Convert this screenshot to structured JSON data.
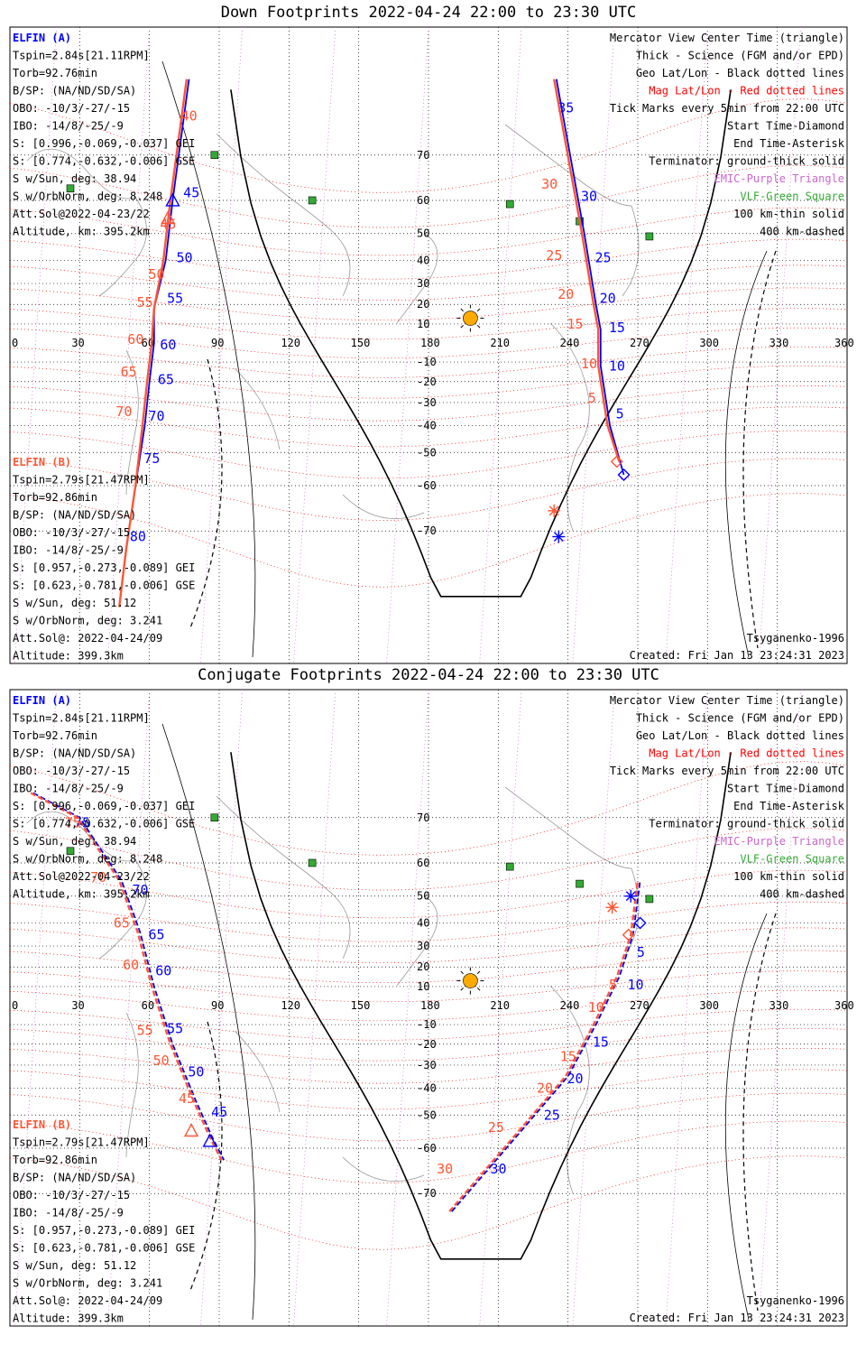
{
  "colors": {
    "probeA": "#0000ff",
    "probeB": "#ff5533",
    "mag": "#ff0000",
    "geo": "#000000",
    "epd": "#cc66cc",
    "vlf": "#33aa33",
    "sun": "#ffaa00",
    "coast": "#9a9a9a"
  },
  "panels": [
    {
      "title": "Down Footprints 2022-04-24 22:00 to 23:30 UTC",
      "legendA": [
        "ELFIN (A)",
        "Tspin=2.84s[21.11RPM]",
        "Torb=92.76min",
        "B/SP: (NA/ND/SD/SA)",
        "OBO: -10/3/-27/-15",
        "IBO: -14/8/-25/-9",
        "S: [0.996,-0.069,-0.037] GEI",
        "S: [0.774,-0.632,-0.006] GSE",
        "S w/Sun, deg: 38.94",
        "S w/OrbNorm, deg: 8.248",
        "Att.Sol@2022-04-23/22",
        "Altitude, km: 395.2km"
      ],
      "legendB": [
        "ELFIN (B)",
        "Tspin=2.79s[21.47RPM]",
        "Torb=92.86min",
        "B/SP: (NA/ND/SD/SA)",
        "OBO: -10/3/-27/-15",
        "IBO: -14/8/-25/-9",
        "S: [0.957,-0.273,-0.089] GEI",
        "S: [0.623,-0.781,-0.006] GSE",
        "S w/Sun, deg: 51.12",
        "S w/OrbNorm, deg: 3.241",
        "Att.Sol@: 2022-04-24/09",
        "Altitude: 399.3km"
      ],
      "rightLegend": [
        "Mercator View Center Time (triangle)",
        "Thick - Science (FGM and/or EPD)",
        "Geo Lat/Lon - Black dotted lines",
        "Mag Lat/Lon - Red dotted lines",
        "Tick Marks every 5min from 22:00 UTC",
        "Start Time-Diamond",
        "End Time-Asterisk",
        "Terminator: ground-thick solid",
        "EMIC-Purple Triangle",
        "VLF-Green Square",
        "100 km-thin solid",
        "400 km-dashed"
      ],
      "model": "Tsyganenko-1996",
      "created": "Created: Fri Jan 13 23:24:31 2023"
    },
    {
      "title": "Conjugate Footprints 2022-04-24 22:00 to 23:30 UTC",
      "legendA": [
        "ELFIN (A)",
        "Tspin=2.84s[21.11RPM]",
        "Torb=92.76min",
        "B/SP: (NA/ND/SD/SA)",
        "OBO: -10/3/-27/-15",
        "IBO: -14/8/-25/-9",
        "S: [0.996,-0.069,-0.037] GEI",
        "S: [0.774,-0.632,-0.006] GSE",
        "S w/Sun, deg: 38.94",
        "S w/OrbNorm, deg: 8.248",
        "Att.Sol@2022-04-23/22",
        "Altitude, km: 395.2km"
      ],
      "legendB": [
        "ELFIN (B)",
        "Tspin=2.79s[21.47RPM]",
        "Torb=92.86min",
        "B/SP: (NA/ND/SD/SA)",
        "OBO: -10/3/-27/-15",
        "IBO: -14/8/-25/-9",
        "S: [0.957,-0.273,-0.089] GEI",
        "S: [0.623,-0.781,-0.006] GSE",
        "S w/Sun, deg: 51.12",
        "S w/OrbNorm, deg: 3.241",
        "Att.Sol@: 2022-04-24/09",
        "Altitude: 399.3km"
      ],
      "rightLegend": [
        "Mercator View Center Time (triangle)",
        "Thick - Science (FGM and/or EPD)",
        "Geo Lat/Lon - Black dotted lines",
        "Mag Lat/Lon - Red dotted lines",
        "Tick Marks every 5min from 22:00 UTC",
        "Start Time-Diamond",
        "End Time-Asterisk",
        "Terminator: ground-thick solid",
        "EMIC-Purple Triangle",
        "VLF-Green Square",
        "100 km-thin solid",
        "400 km-dashed"
      ],
      "model": "Tsyganenko-1996",
      "created": "Created: Fri Jan 13 23:24:31 2023"
    }
  ],
  "chart_data": [
    {
      "type": "scatter",
      "title": "Down Footprints 2022-04-24 22:00 to 23:30 UTC",
      "xlim": [
        0,
        360
      ],
      "ylim": [
        -80,
        80
      ],
      "lon_ticks": [
        0,
        30,
        60,
        90,
        120,
        150,
        180,
        210,
        240,
        270,
        300,
        330,
        360
      ],
      "lat_ticks": [
        70,
        60,
        50,
        40,
        30,
        20,
        10,
        -10,
        -20,
        -30,
        -40,
        -50,
        -60,
        -70
      ],
      "sun": {
        "lon": 198,
        "lat": 13
      },
      "vlf_stations": [
        [
          26,
          63
        ],
        [
          88,
          70
        ],
        [
          130,
          60
        ],
        [
          215,
          59
        ],
        [
          245,
          54
        ],
        [
          275,
          49
        ]
      ],
      "series": [
        {
          "name": "ELFIN (A)",
          "ticks": [
            {
              "label": "35",
              "lon": 234,
              "lat": 77
            },
            {
              "label": "30",
              "lon": 244,
              "lat": 61
            },
            {
              "label": "25",
              "lon": 250,
              "lat": 41
            },
            {
              "label": "20",
              "lon": 252,
              "lat": 23
            },
            {
              "label": "15",
              "lon": 256,
              "lat": 8
            },
            {
              "label": "10",
              "lon": 256,
              "lat": -12
            },
            {
              "label": "5",
              "lon": 259,
              "lat": -35
            },
            {
              "label": "45",
              "lon": 73,
              "lat": 62
            },
            {
              "label": "50",
              "lon": 70,
              "lat": 41
            },
            {
              "label": "55",
              "lon": 66,
              "lat": 23
            },
            {
              "label": "60",
              "lon": 63,
              "lat": -1
            },
            {
              "label": "65",
              "lon": 62,
              "lat": -19
            },
            {
              "label": "70",
              "lon": 58,
              "lat": -36
            },
            {
              "label": "75",
              "lon": 56,
              "lat": -52
            },
            {
              "label": "80",
              "lon": 50,
              "lat": -71
            }
          ],
          "track": [
            [
              77,
              80
            ],
            [
              70,
              60
            ],
            [
              67,
              40
            ],
            [
              62,
              18
            ],
            [
              62,
              0
            ],
            [
              60,
              -20
            ],
            [
              58,
              -40
            ],
            [
              54,
              -60
            ],
            [
              50,
              -73
            ],
            [
              47,
              -80
            ],
            [
              235,
              80
            ],
            [
              247,
              50
            ],
            [
              252,
              20
            ],
            [
              254,
              7
            ],
            [
              254,
              -12
            ],
            [
              258,
              -40
            ],
            [
              264,
              -57
            ]
          ]
        },
        {
          "name": "ELFIN (B)",
          "ticks": [
            {
              "label": "40",
              "lon": 72,
              "lat": 76
            },
            {
              "label": "45",
              "lon": 63,
              "lat": 53
            },
            {
              "label": "50",
              "lon": 58,
              "lat": 34
            },
            {
              "label": "55",
              "lon": 53,
              "lat": 21
            },
            {
              "label": "60",
              "lon": 49,
              "lat": 2
            },
            {
              "label": "65",
              "lon": 46,
              "lat": -15
            },
            {
              "label": "70",
              "lon": 44,
              "lat": -34
            },
            {
              "label": "30",
              "lon": 227,
              "lat": 64
            },
            {
              "label": "25",
              "lon": 229,
              "lat": 42
            },
            {
              "label": "20",
              "lon": 234,
              "lat": 25
            },
            {
              "label": "15",
              "lon": 238,
              "lat": 10
            },
            {
              "label": "10",
              "lon": 244,
              "lat": -11
            },
            {
              "label": "5",
              "lon": 247,
              "lat": -28
            }
          ],
          "track": [
            [
              76,
              80
            ],
            [
              69,
              60
            ],
            [
              66,
              40
            ],
            [
              62,
              18
            ],
            [
              61,
              0
            ],
            [
              59,
              -20
            ],
            [
              57,
              -40
            ],
            [
              54,
              -60
            ],
            [
              50,
              -73
            ],
            [
              47,
              -80
            ],
            [
              234,
              80
            ],
            [
              246,
              50
            ],
            [
              251,
              20
            ],
            [
              253,
              7
            ],
            [
              253,
              -12
            ],
            [
              257,
              -40
            ],
            [
              262,
              -53
            ]
          ]
        }
      ]
    },
    {
      "type": "scatter",
      "title": "Conjugate Footprints 2022-04-24 22:00 to 23:30 UTC",
      "xlim": [
        0,
        360
      ],
      "ylim": [
        -80,
        80
      ],
      "lon_ticks": [
        0,
        30,
        60,
        90,
        120,
        150,
        180,
        210,
        240,
        270,
        300,
        330,
        360
      ],
      "lat_ticks": [
        70,
        60,
        50,
        40,
        30,
        20,
        10,
        -10,
        -20,
        -30,
        -40,
        -50,
        -60,
        -70
      ],
      "sun": {
        "lon": 198,
        "lat": 13
      },
      "vlf_stations": [
        [
          26,
          63
        ],
        [
          88,
          70
        ],
        [
          130,
          60
        ],
        [
          215,
          59
        ],
        [
          245,
          54
        ],
        [
          275,
          49
        ]
      ],
      "series": [
        {
          "name": "ELFIN (A)",
          "ticks": [
            {
              "label": "75",
              "lon": 26,
              "lat": 69
            },
            {
              "label": "70",
              "lon": 51,
              "lat": 52
            },
            {
              "label": "65",
              "lon": 58,
              "lat": 35
            },
            {
              "label": "60",
              "lon": 61,
              "lat": 18
            },
            {
              "label": "55",
              "lon": 66,
              "lat": -12
            },
            {
              "label": "50",
              "lon": 75,
              "lat": -33
            },
            {
              "label": "45",
              "lon": 85,
              "lat": -49
            },
            {
              "label": "30",
              "lon": 205,
              "lat": -65
            },
            {
              "label": "25",
              "lon": 228,
              "lat": -50
            },
            {
              "label": "20",
              "lon": 238,
              "lat": -36
            },
            {
              "label": "15",
              "lon": 249,
              "lat": -19
            },
            {
              "label": "10",
              "lon": 264,
              "lat": 11
            },
            {
              "label": "5",
              "lon": 268,
              "lat": 27
            }
          ],
          "track": [
            [
              10,
              74
            ],
            [
              30,
              70
            ],
            [
              48,
              55
            ],
            [
              56,
              36
            ],
            [
              62,
              10
            ],
            [
              70,
              -20
            ],
            [
              80,
              -45
            ],
            [
              87,
              -57
            ],
            [
              92,
              -63
            ],
            [
              190,
              -73
            ],
            [
              220,
              -55
            ],
            [
              240,
              -35
            ],
            [
              252,
              -10
            ],
            [
              262,
              15
            ],
            [
              268,
              35
            ],
            [
              271,
              55
            ]
          ]
        },
        {
          "name": "ELFIN (B)",
          "ticks": [
            {
              "label": "75",
              "lon": 22,
              "lat": 69
            },
            {
              "label": "70",
              "lon": 33,
              "lat": 56
            },
            {
              "label": "65",
              "lon": 43,
              "lat": 40
            },
            {
              "label": "60",
              "lon": 47,
              "lat": 21
            },
            {
              "label": "55",
              "lon": 53,
              "lat": -13
            },
            {
              "label": "50",
              "lon": 60,
              "lat": -28
            },
            {
              "label": "45",
              "lon": 71,
              "lat": -44
            },
            {
              "label": "30",
              "lon": 182,
              "lat": -65
            },
            {
              "label": "25",
              "lon": 204,
              "lat": -54
            },
            {
              "label": "20",
              "lon": 225,
              "lat": -40
            },
            {
              "label": "15",
              "lon": 235,
              "lat": -26
            },
            {
              "label": "10",
              "lon": 247,
              "lat": -1
            },
            {
              "label": "5",
              "lon": 256,
              "lat": 11
            }
          ],
          "track": [
            [
              9,
              74
            ],
            [
              29,
              70
            ],
            [
              47,
              55
            ],
            [
              55,
              36
            ],
            [
              61,
              10
            ],
            [
              69,
              -20
            ],
            [
              79,
              -45
            ],
            [
              86,
              -57
            ],
            [
              91,
              -63
            ],
            [
              189,
              -73
            ],
            [
              219,
              -55
            ],
            [
              239,
              -35
            ],
            [
              251,
              -10
            ],
            [
              261,
              15
            ],
            [
              267,
              35
            ],
            [
              270,
              55
            ]
          ]
        }
      ]
    }
  ]
}
